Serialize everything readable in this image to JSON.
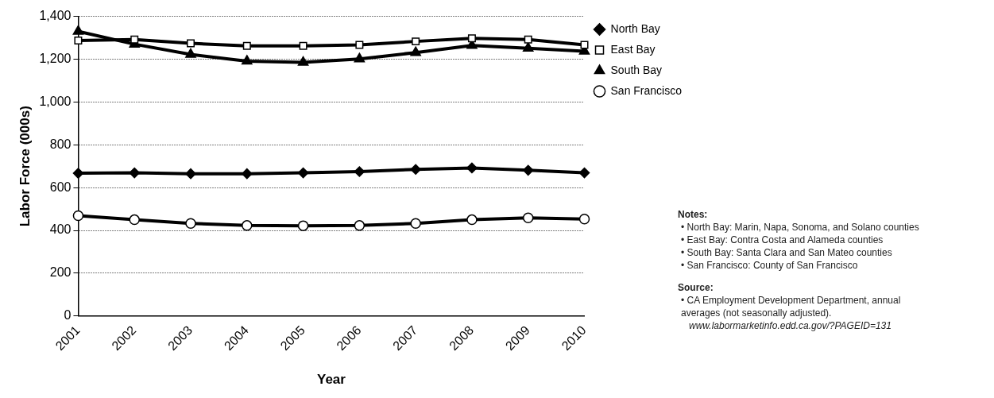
{
  "chart_data": {
    "type": "line",
    "xlabel": "Year",
    "ylabel": "Labor Force (000s)",
    "categories": [
      "2001",
      "2002",
      "2003",
      "2004",
      "2005",
      "2006",
      "2007",
      "2008",
      "2009",
      "2010"
    ],
    "series": [
      {
        "name": "North Bay",
        "color": "#000000",
        "marker": "diamond",
        "values": [
          667,
          669,
          665,
          665,
          669,
          675,
          685,
          692,
          681,
          669
        ]
      },
      {
        "name": "East Bay",
        "color": "#000000",
        "marker": "square",
        "values": [
          1287,
          1292,
          1274,
          1262,
          1262,
          1267,
          1283,
          1297,
          1292,
          1267
        ]
      },
      {
        "name": "South Bay",
        "color": "#000000",
        "marker": "triangle",
        "values": [
          1330,
          1270,
          1222,
          1191,
          1185,
          1201,
          1231,
          1264,
          1251,
          1237
        ]
      },
      {
        "name": "San Francisco",
        "color": "#000000",
        "marker": "circle",
        "values": [
          469,
          450,
          433,
          423,
          422,
          423,
          433,
          450,
          459,
          453
        ]
      }
    ],
    "ylim": [
      0,
      1400
    ],
    "yticks": [
      0,
      200,
      400,
      600,
      800,
      {
        "value": 1000,
        "label": "1,000"
      },
      {
        "value": 1200,
        "label": "1,200"
      },
      {
        "value": 1400,
        "label": "1,400"
      }
    ],
    "grid": "y",
    "legend": "top right",
    "line_style": "solid",
    "annotations": [
      "Notes:",
      "• North Bay: Marin, Napa, Sonoma, and Solano counties",
      "• East Bay: Contra Costa and Alameda counties",
      "• South Bay: Santa Clara and San Mateo counties",
      "• San Francisco: County of San Francisco",
      "Source:",
      "• CA Employment Development Department, annual averages (not seasonally adjusted).",
      "www.labormarketinfo.edd.ca.gov/?PAGEID=131"
    ]
  }
}
